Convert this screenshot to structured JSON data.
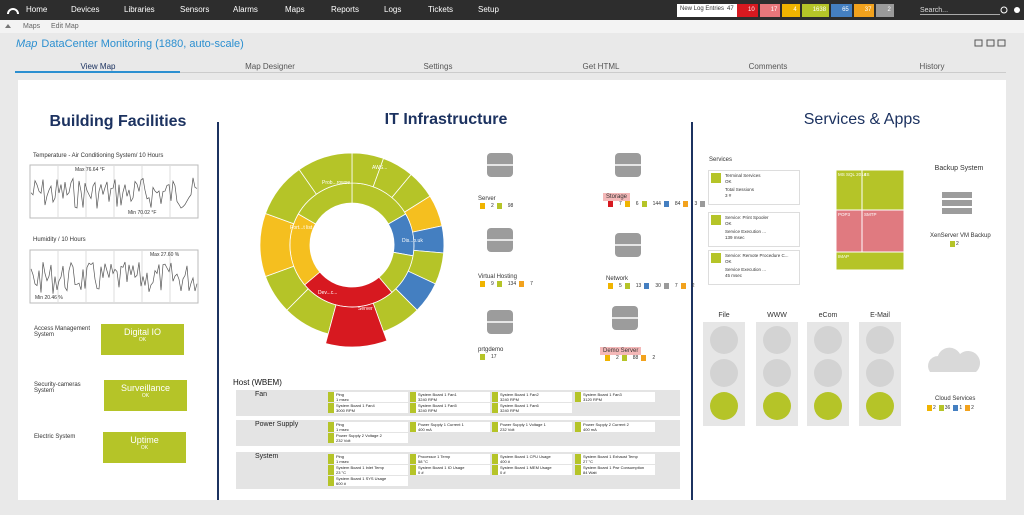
{
  "nav": {
    "items": [
      "Home",
      "Devices",
      "Libraries",
      "Sensors",
      "Alarms",
      "Maps",
      "Reports",
      "Logs",
      "Tickets",
      "Setup"
    ],
    "log_label": "New Log Entries",
    "log_count": 47,
    "badges": [
      {
        "value": 10,
        "color": "#d71920"
      },
      {
        "value": 17,
        "color": "#e8777b"
      },
      {
        "value": 4,
        "color": "#f0b400"
      },
      {
        "value": 1638,
        "color": "#b5c428"
      },
      {
        "value": 65,
        "color": "#447fc1"
      },
      {
        "value": 37,
        "color": "#f2a21d"
      },
      {
        "value": 2,
        "color": "#9a9a9a"
      }
    ],
    "search": "Search..."
  },
  "breadcrumb": [
    "Maps",
    "Edit Map"
  ],
  "header": {
    "prefix": "Map",
    "title": "DataCenter Monitoring (1880, auto-scale)"
  },
  "tabs": [
    "View Map",
    "Map Designer",
    "Settings",
    "Get HTML",
    "Comments",
    "History"
  ],
  "building": {
    "title": "Building Facilities",
    "charts": [
      {
        "title": "Temperature - Air Conditioning System/ 10 Hours",
        "max": "Max 76.64 °F",
        "min": "Min 70.02 °F"
      },
      {
        "title": "Humidity / 10 Hours",
        "max": "Max 27.60 %",
        "min": "Min 20.46 %"
      }
    ],
    "systems": [
      {
        "label": "Access Management System",
        "name": "Digital IO",
        "status": "OK"
      },
      {
        "label": "Security-cameras System",
        "name": "Surveillance",
        "status": "OK"
      },
      {
        "label": "Electric System",
        "name": "Uptime",
        "status": "OK"
      }
    ]
  },
  "it": {
    "title": "IT Infrastructure",
    "sunburst_labels": [
      "Prob...rowse",
      "AWS...",
      "Port...t list",
      "Dev...c...",
      "Dis...o.uk",
      "Server",
      "Red..."
    ],
    "devices": [
      {
        "label": "Server",
        "counts": [
          2,
          98
        ],
        "colors": [
          "#f0b400",
          "#b5c428"
        ]
      },
      {
        "label": "Storage",
        "counts": [
          7,
          6,
          144,
          84,
          3,
          1
        ],
        "colors": [
          "#d71920",
          "#f0b400",
          "#b5c428",
          "#447fc1",
          "#f2a21d",
          "#9a9a9a"
        ]
      },
      {
        "label": "Virtual Hosting",
        "counts": [
          9,
          134,
          7
        ],
        "colors": [
          "#f0b400",
          "#b5c428",
          "#f2a21d"
        ]
      },
      {
        "label": "Network",
        "counts": [
          5,
          13,
          30,
          7,
          2
        ],
        "colors": [
          "#f0b400",
          "#b5c428",
          "#447fc1",
          "#9a9a9a",
          "#f2a21d"
        ]
      },
      {
        "label": "prtgdemo",
        "counts": [
          17
        ],
        "colors": [
          "#b5c428"
        ]
      },
      {
        "label": "Demo Server",
        "counts": [
          2,
          88,
          2
        ],
        "colors": [
          "#f0b400",
          "#b5c428",
          "#f2a21d"
        ]
      }
    ],
    "host": {
      "title": "Host (WBEM)",
      "groups": [
        {
          "name": "Fan",
          "sensors": [
            [
              "Ping",
              "1 msec"
            ],
            [
              "System Board 1 Fan1",
              "3240 RPM"
            ],
            [
              "System Board 1 Fan2",
              "3240 RPM"
            ],
            [
              "System Board 1 Fan3",
              "3120 RPM"
            ],
            [
              "System Board 1 Fan4",
              "3000 RPM"
            ],
            [
              "System Board 1 Fan5",
              "3240 RPM"
            ],
            [
              "System Board 1 Fan6",
              "3240 RPM"
            ]
          ]
        },
        {
          "name": "Power Supply",
          "sensors": [
            [
              "Ping",
              "1 msec"
            ],
            [
              "Power Supply 1 Current 1",
              "400 mA"
            ],
            [
              "Power Supply 1 Voltage 1",
              "232 Volt"
            ],
            [
              "Power Supply 2 Current 2",
              "400 mA"
            ],
            [
              "Power Supply 2 Voltage 2",
              "232 Volt"
            ]
          ]
        },
        {
          "name": "System",
          "sensors": [
            [
              "Ping",
              "1 msec"
            ],
            [
              "Processor 1 Temp",
              "58 °C"
            ],
            [
              "System Board 1 CPU Usage",
              "400 #"
            ],
            [
              "System Board 1 Exhaust Temp",
              "27 °C"
            ],
            [
              "System Board 1 Inlet Temp",
              "23 °C"
            ],
            [
              "System Board 1 IO Usage",
              "0 #"
            ],
            [
              "System Board 1 MEM Usage",
              "0 #"
            ],
            [
              "System Board 1 Pwr Consumption",
              "84 Watt"
            ],
            [
              "System Board 1 SYS Usage",
              "600 #"
            ]
          ]
        }
      ]
    }
  },
  "services": {
    "title": "Services & Apps",
    "services_label": "Services",
    "tiles": [
      {
        "name": "Terminal Services",
        "status": "OK",
        "metric": "Total Sessions",
        "value": "3 #"
      },
      {
        "name": "Service: Print Spooler",
        "status": "OK",
        "metric": "Service Execution ...",
        "value": "139 msec"
      },
      {
        "name": "Service: Remote Procedure C...",
        "status": "OK",
        "metric": "Service Execution ...",
        "value": "45 msec"
      }
    ],
    "treemap": [
      "MS SQL 2014",
      "IIS",
      "POP3",
      "SMTP",
      "IMAP"
    ],
    "backup": {
      "title": "Backup System",
      "label": "XenServer VM Backup",
      "count": 2
    },
    "lights": [
      "File",
      "WWW",
      "eCom",
      "E-Mail"
    ],
    "cloud": {
      "label": "Cloud Services",
      "counts": [
        2,
        36,
        1,
        2
      ],
      "colors": [
        "#f0b400",
        "#b5c428",
        "#447fc1",
        "#f2a21d"
      ]
    }
  }
}
